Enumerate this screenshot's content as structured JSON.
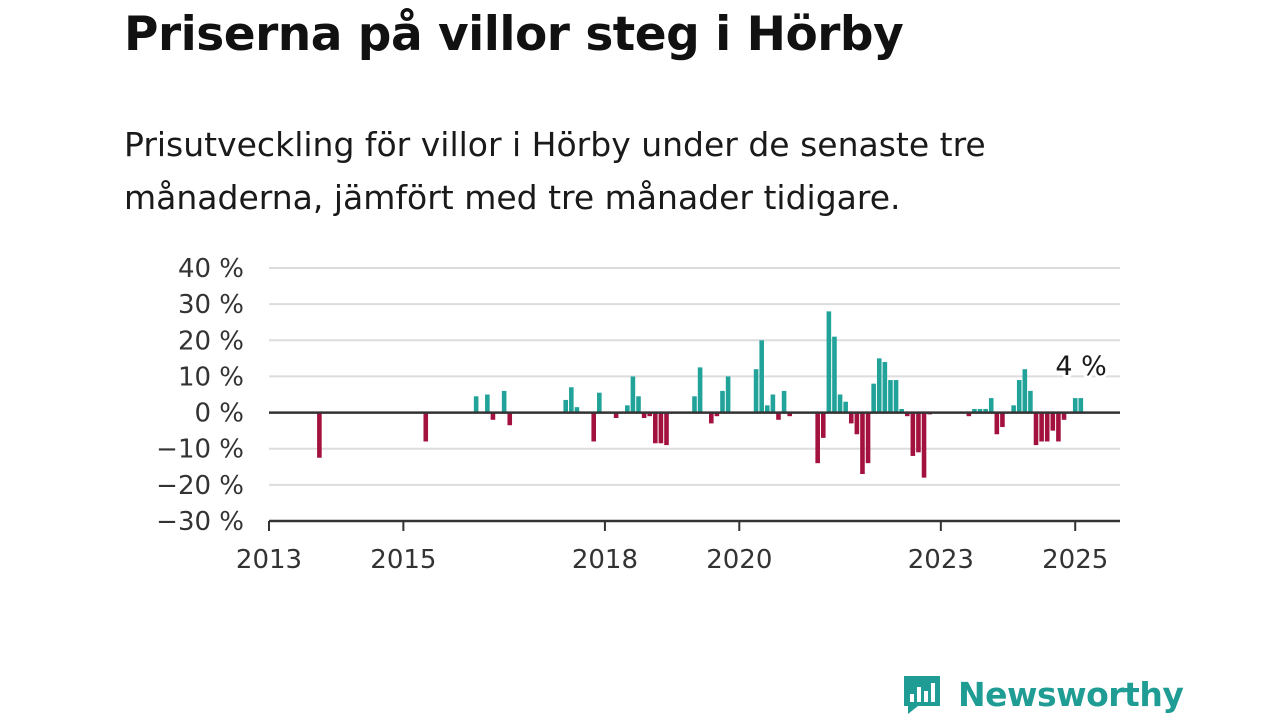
{
  "title": "Priserna på villor steg i Hörby",
  "subtitle": "Prisutveckling för villor i Hörby under de senaste tre månaderna, jämfört med tre månader tidigare.",
  "brand": {
    "name": "Newsworthy",
    "icon": "newsworthy-bar-chart-bubble-icon",
    "color": "#1f9c93"
  },
  "colors": {
    "positive": "#22a39a",
    "negative": "#a3123f",
    "grid": "#dddddd",
    "axis": "#333333"
  },
  "chart_data": {
    "type": "bar",
    "title": "Priserna på villor steg i Hörby",
    "subtitle": "Prisutveckling för villor i Hörby under de senaste tre månaderna, jämfört med tre månader tidigare.",
    "xlabel": "",
    "ylabel": "",
    "ylim": [
      -30,
      40
    ],
    "xlim": [
      "2013-01",
      "2025-09"
    ],
    "grid": true,
    "legend": "none",
    "y_ticks": [
      {
        "value": 40,
        "label": "40 %"
      },
      {
        "value": 30,
        "label": "30 %"
      },
      {
        "value": 20,
        "label": "20 %"
      },
      {
        "value": 10,
        "label": "10 %"
      },
      {
        "value": 0,
        "label": "0 %"
      },
      {
        "value": -10,
        "label": "−10 %"
      },
      {
        "value": -20,
        "label": "−20 %"
      },
      {
        "value": -30,
        "label": "−30 %"
      }
    ],
    "x_ticks": [
      {
        "value": "2013-01",
        "label": "2013"
      },
      {
        "value": "2015-01",
        "label": "2015"
      },
      {
        "value": "2018-01",
        "label": "2018"
      },
      {
        "value": "2020-01",
        "label": "2020"
      },
      {
        "value": "2023-01",
        "label": "2023"
      },
      {
        "value": "2025-01",
        "label": "2025"
      }
    ],
    "annotations": [
      {
        "x": "2025-02",
        "y": 4,
        "text": "4 %"
      }
    ],
    "series": [
      {
        "x": [
          "2013-10",
          "2015-05",
          "2016-02",
          "2016-04",
          "2016-05",
          "2016-07",
          "2016-08",
          "2017-06",
          "2017-07",
          "2017-08",
          "2017-11",
          "2017-12",
          "2018-03",
          "2018-05",
          "2018-06",
          "2018-07",
          "2018-08",
          "2018-09",
          "2018-10",
          "2018-11",
          "2018-12",
          "2019-05",
          "2019-06",
          "2019-08",
          "2019-09",
          "2019-10",
          "2019-11",
          "2020-04",
          "2020-05",
          "2020-06",
          "2020-07",
          "2020-08",
          "2020-09",
          "2020-10",
          "2021-03",
          "2021-04",
          "2021-05",
          "2021-06",
          "2021-07",
          "2021-08",
          "2021-09",
          "2021-10",
          "2021-11",
          "2021-12",
          "2022-01",
          "2022-02",
          "2022-03",
          "2022-04",
          "2022-05",
          "2022-06",
          "2022-07",
          "2022-08",
          "2022-09",
          "2022-10",
          "2022-11",
          "2023-06",
          "2023-07",
          "2023-08",
          "2023-09",
          "2023-10",
          "2023-11",
          "2023-12",
          "2024-02",
          "2024-03",
          "2024-04",
          "2024-05",
          "2024-06",
          "2024-07",
          "2024-08",
          "2024-09",
          "2024-10",
          "2024-11",
          "2025-01",
          "2025-02"
        ],
        "values": [
          -12.5,
          -8,
          4.5,
          5,
          -2,
          6,
          -3.5,
          3.5,
          7,
          1.5,
          -8,
          5.5,
          -1.5,
          2,
          10,
          4.5,
          -1.5,
          -1,
          -8.5,
          -8.5,
          -9,
          4.5,
          12.5,
          -3,
          -1,
          6,
          10,
          12,
          20,
          2,
          5,
          -2,
          6,
          -1,
          -14,
          -7,
          28,
          21,
          5,
          3,
          -3,
          -6,
          -17,
          -14,
          8,
          15,
          14,
          9,
          9,
          1,
          -1,
          -12,
          -11,
          -18,
          -0.5,
          -1,
          1,
          1,
          1,
          4,
          -6,
          -4,
          2,
          9,
          12,
          6,
          -9,
          -8,
          -8,
          -5,
          -8,
          -2,
          4,
          4
        ]
      }
    ]
  }
}
